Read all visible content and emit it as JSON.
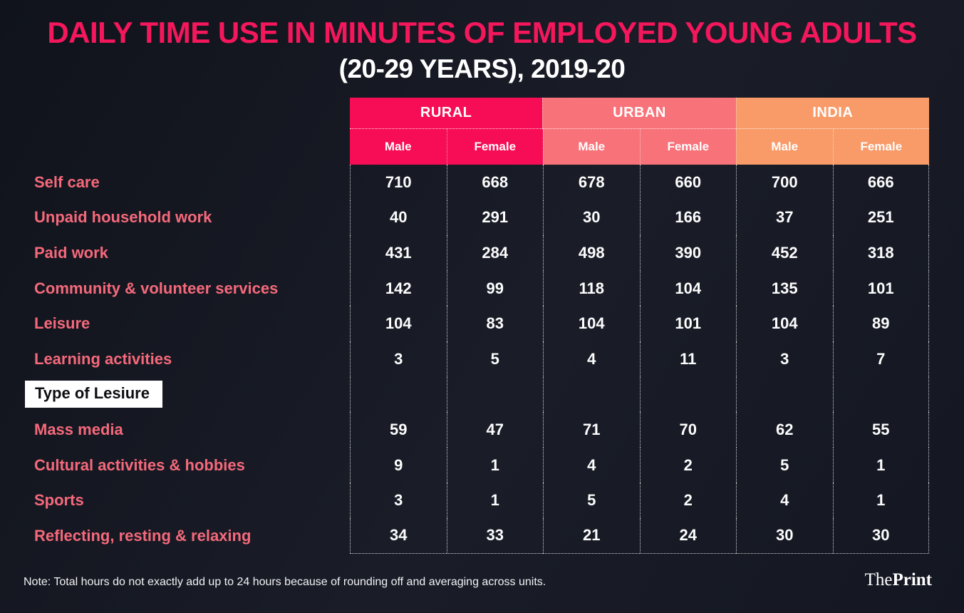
{
  "title": {
    "line1": "DAILY TIME USE IN MINUTES OF EMPLOYED YOUNG ADULTS",
    "line2": "(20-29 YEARS), 2019-20"
  },
  "note": "Note: Total hours do not exactly add up to 24 hours because of rounding off and averaging across units.",
  "brand": {
    "part1": "The",
    "part2": "Print"
  },
  "colors": {
    "background": "#171a24",
    "title_accent": "#f4175c",
    "row_label": "#f5697b",
    "rural": "#f60d55",
    "urban": "#f87379",
    "india": "#f89b69",
    "value_text": "#ffffff",
    "section_box_bg": "#ffffff",
    "section_box_text": "#0d0d12"
  },
  "chart_data": {
    "type": "table",
    "title": "Daily time use in minutes of employed young adults (20-29 years), 2019-20",
    "column_groups": [
      {
        "label": "RURAL",
        "color": "#f60d55"
      },
      {
        "label": "URBAN",
        "color": "#f87379"
      },
      {
        "label": "INDIA",
        "color": "#f89b69"
      }
    ],
    "sub_columns": [
      "Male",
      "Female",
      "Male",
      "Female",
      "Male",
      "Female"
    ],
    "columns": [
      "Rural Male",
      "Rural Female",
      "Urban Male",
      "Urban Female",
      "India Male",
      "India Female"
    ],
    "rows": [
      {
        "label": "Self care",
        "values": [
          710,
          668,
          678,
          660,
          700,
          666
        ]
      },
      {
        "label": "Unpaid household work",
        "values": [
          40,
          291,
          30,
          166,
          37,
          251
        ]
      },
      {
        "label": "Paid work",
        "values": [
          431,
          284,
          498,
          390,
          452,
          318
        ]
      },
      {
        "label": "Community & volunteer services",
        "values": [
          142,
          99,
          118,
          104,
          135,
          101
        ]
      },
      {
        "label": "Leisure",
        "values": [
          104,
          83,
          104,
          101,
          104,
          89
        ]
      },
      {
        "label": "Learning activities",
        "values": [
          3,
          5,
          4,
          11,
          3,
          7
        ]
      },
      {
        "label": "Type of Lesiure",
        "section": true,
        "values": []
      },
      {
        "label": "Mass media",
        "values": [
          59,
          47,
          71,
          70,
          62,
          55
        ]
      },
      {
        "label": "Cultural activities & hobbies",
        "values": [
          9,
          1,
          4,
          2,
          5,
          1
        ]
      },
      {
        "label": "Sports",
        "values": [
          3,
          1,
          5,
          2,
          4,
          1
        ]
      },
      {
        "label": "Reflecting, resting & relaxing",
        "values": [
          34,
          33,
          21,
          24,
          30,
          30
        ]
      }
    ]
  }
}
